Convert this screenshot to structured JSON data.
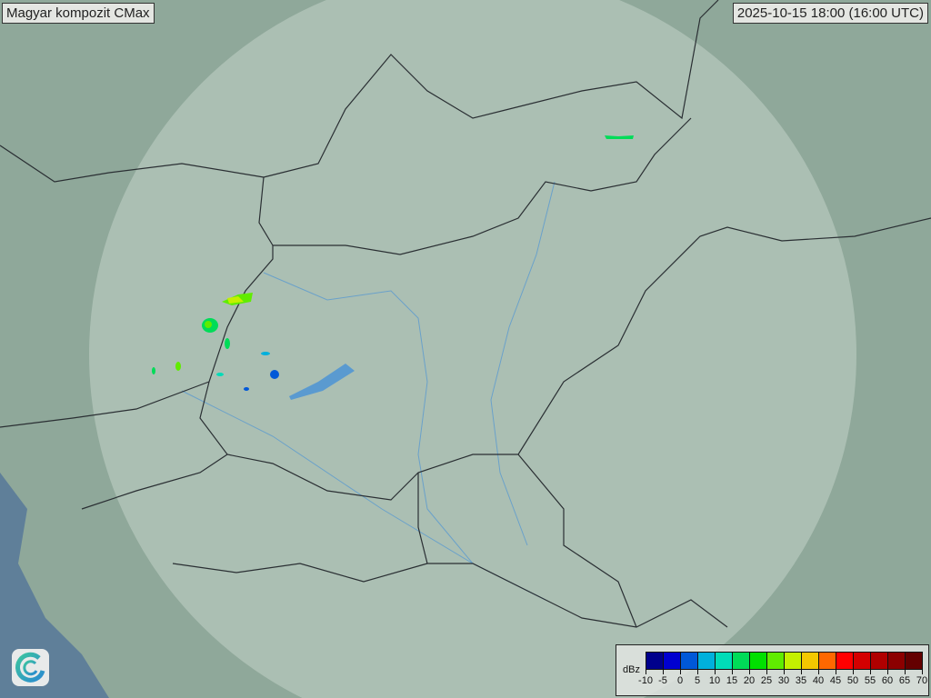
{
  "title": "Magyar kompozit  CMax",
  "timestamp": "2025-10-15 18:00 (16:00 UTC)",
  "logo": {
    "icon": "swirl-logo-icon"
  },
  "legend": {
    "unit": "dBz",
    "ticks": [
      "-10",
      "-5",
      "0",
      "5",
      "10",
      "15",
      "20",
      "25",
      "30",
      "35",
      "40",
      "45",
      "50",
      "55",
      "60",
      "65",
      "70"
    ],
    "colors": [
      "#00008c",
      "#0000d0",
      "#0058d8",
      "#00b0dc",
      "#00dcb8",
      "#00dc58",
      "#00e000",
      "#60ec00",
      "#c4f000",
      "#f4c800",
      "#ff6800",
      "#ff0000",
      "#d40000",
      "#b00000",
      "#8c0000",
      "#640000"
    ]
  },
  "colors": {
    "terrain": "#8fa89a",
    "coverage": "#b4c6bc",
    "sea": "#5f7f99",
    "border": "#2a2f33",
    "river": "#5a9ad0"
  }
}
